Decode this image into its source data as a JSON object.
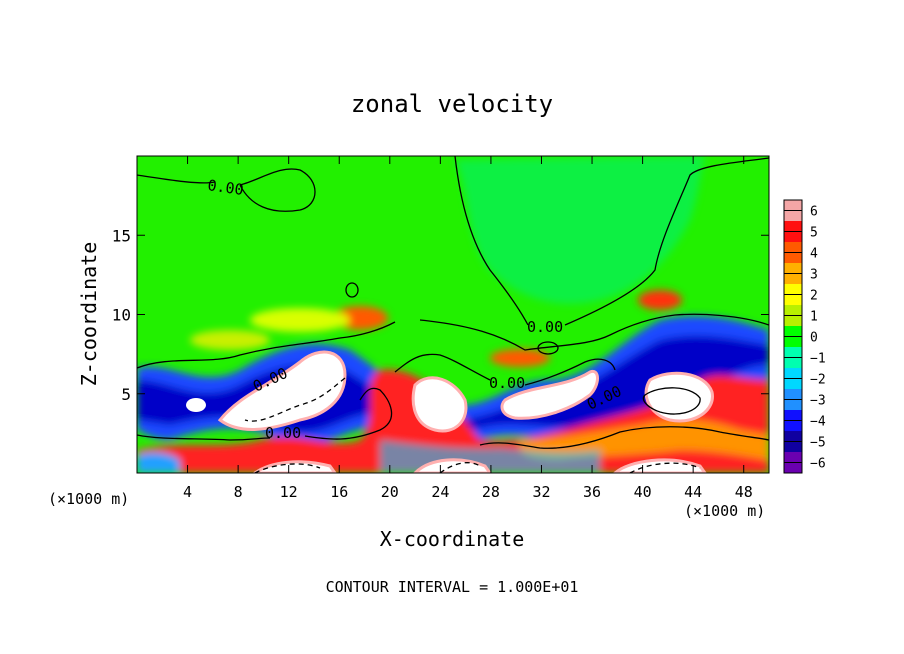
{
  "chart_data": {
    "type": "heatmap",
    "title": "zonal velocity",
    "xlabel": "X-coordinate",
    "ylabel": "Z-coordinate",
    "x_unit_left": "(×1000 m)",
    "x_unit_right": "(×1000 m)",
    "xlim": [
      0,
      50
    ],
    "ylim": [
      0,
      20
    ],
    "x_ticks": [
      4,
      8,
      12,
      16,
      20,
      24,
      28,
      32,
      36,
      40,
      44,
      48
    ],
    "y_ticks": [
      5,
      10,
      15
    ],
    "colorbar": {
      "ticks": [
        6,
        5,
        4,
        3,
        2,
        1,
        0,
        -1,
        -2,
        -3,
        -4,
        -5,
        -6
      ],
      "range": [
        -6,
        6
      ],
      "colors": [
        "#f4a6a6",
        "#ff1010",
        "#ff5a00",
        "#ffb000",
        "#ffff00",
        "#b8f000",
        "#00ff00",
        "#00ffb0",
        "#00d8ff",
        "#2090ff",
        "#1010ff",
        "#1000a0",
        "#6a00b0"
      ]
    },
    "contour_labels": [
      "0.00",
      "0.00",
      "0.00",
      "0.00",
      "0.00",
      "0.00"
    ],
    "footer": "CONTOUR INTERVAL = 1.000E+01"
  }
}
